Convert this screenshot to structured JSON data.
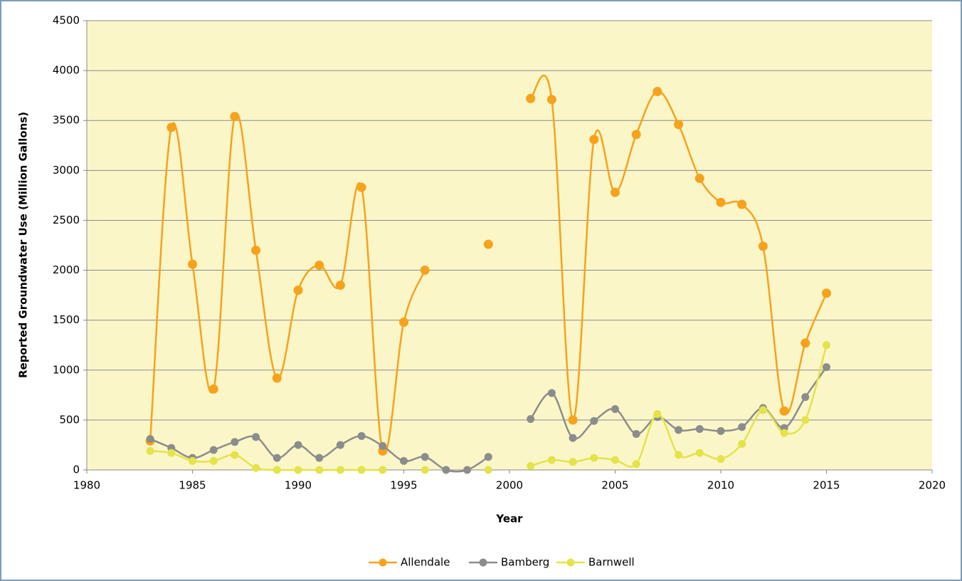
{
  "chart_data": {
    "type": "line",
    "x_label": "Year",
    "y_label": "Reported Groundwater Use (Million Gallons)",
    "x": [
      1983,
      1984,
      1985,
      1986,
      1987,
      1988,
      1989,
      1990,
      1991,
      1992,
      1993,
      1994,
      1995,
      1996,
      1997,
      1998,
      1999,
      2000,
      2001,
      2002,
      2003,
      2004,
      2005,
      2006,
      2007,
      2008,
      2009,
      2010,
      2011,
      2012,
      2013,
      2014,
      2015
    ],
    "series": [
      {
        "name": "Allendale",
        "color": "#f7a21b",
        "values": [
          290,
          3430,
          2060,
          810,
          3540,
          2200,
          920,
          1800,
          2050,
          1850,
          2830,
          190,
          1480,
          2000,
          null,
          null,
          2260,
          null,
          3720,
          3710,
          500,
          3310,
          2780,
          3360,
          3790,
          3460,
          2920,
          2680,
          2660,
          2240,
          590,
          1270,
          1770
        ]
      },
      {
        "name": "Bamberg",
        "color": "#8c8c8c",
        "values": [
          310,
          220,
          120,
          200,
          280,
          330,
          120,
          250,
          120,
          250,
          340,
          240,
          90,
          130,
          0,
          0,
          130,
          null,
          510,
          770,
          320,
          490,
          610,
          360,
          530,
          400,
          410,
          390,
          430,
          620,
          420,
          730,
          1030
        ]
      },
      {
        "name": "Barnwell",
        "color": "#e3e34a",
        "values": [
          190,
          170,
          90,
          90,
          150,
          20,
          0,
          0,
          0,
          0,
          0,
          0,
          null,
          0,
          null,
          null,
          0,
          null,
          40,
          100,
          80,
          120,
          100,
          60,
          560,
          150,
          170,
          110,
          260,
          600,
          370,
          500,
          1250
        ]
      }
    ],
    "xlim": [
      1980,
      2020
    ],
    "xticks": [
      1980,
      1985,
      1990,
      1995,
      2000,
      2005,
      2010,
      2015,
      2020
    ],
    "ylim": [
      0,
      4500
    ],
    "yticks": [
      0,
      500,
      1000,
      1500,
      2000,
      2500,
      3000,
      3500,
      4000,
      4500
    ],
    "grid": true,
    "legend": "bottom",
    "smooth": true
  }
}
